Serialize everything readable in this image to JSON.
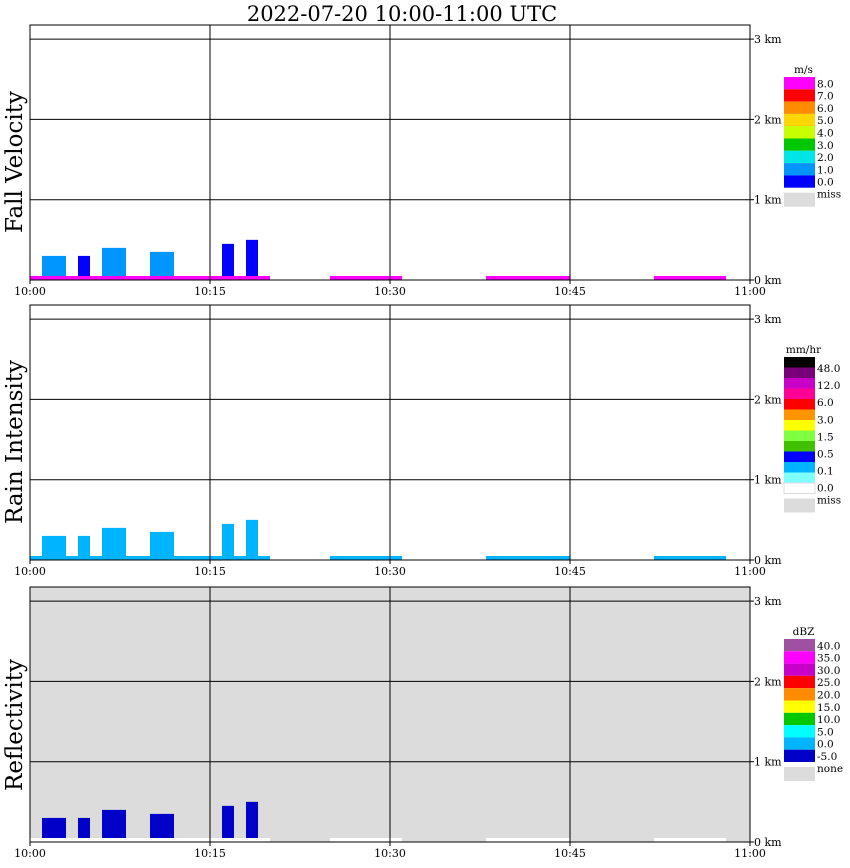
{
  "title": "2022-07-20  10:00-11:00 UTC",
  "x_ticks": [
    "10:00",
    "10:15",
    "10:30",
    "10:45",
    "11:00"
  ],
  "height_ticks": [
    "0 km",
    "1 km",
    "2 km",
    "3 km"
  ],
  "colors": {
    "axis": "#000000",
    "missing": "#dcdcdc",
    "fv": [
      "#0000ff",
      "#0096ff",
      "#00e6e6",
      "#00c800",
      "#c8ff00",
      "#ffd700",
      "#ff8c00",
      "#ff0000",
      "#ff00ff"
    ],
    "ri": [
      "#ffffff",
      "#80ffff",
      "#00b4ff",
      "#0000ff",
      "#40c000",
      "#80ff40",
      "#ffff00",
      "#ff9600",
      "#ff0000",
      "#ff0096",
      "#c800c8",
      "#780078",
      "#000000"
    ],
    "refl": [
      "#0000c8",
      "#00b4ff",
      "#00ffff",
      "#00c800",
      "#ffff00",
      "#ff8c00",
      "#ff0000",
      "#c800c8",
      "#ff00ff",
      "#a050a0"
    ]
  },
  "chart_data": [
    {
      "type": "heatmap",
      "name": "fall_velocity",
      "ylabel": "Fall Velocity",
      "unit": "m/s",
      "x_range": [
        "10:00",
        "11:00"
      ],
      "y_range_km": [
        0,
        3.2
      ],
      "colorbar_labels": [
        "0.0",
        "1.0",
        "2.0",
        "3.0",
        "4.0",
        "5.0",
        "6.0",
        "7.0",
        "8.0"
      ],
      "missing_label": "miss",
      "echo_cells": [
        {
          "t_start": "10:01",
          "t_end": "10:03",
          "top_km": 0.3,
          "value": 1.5
        },
        {
          "t_start": "10:04",
          "t_end": "10:05",
          "top_km": 0.3,
          "value": 0.5
        },
        {
          "t_start": "10:06",
          "t_end": "10:08",
          "top_km": 0.4,
          "value": 1.5
        },
        {
          "t_start": "10:10",
          "t_end": "10:12",
          "top_km": 0.35,
          "value": 1.0
        },
        {
          "t_start": "10:16",
          "t_end": "10:17",
          "top_km": 0.45,
          "value": 0.5
        },
        {
          "t_start": "10:18",
          "t_end": "10:19",
          "top_km": 0.5,
          "value": 0.8
        }
      ],
      "surface_traces": [
        {
          "t_start": "10:00",
          "t_end": "10:20",
          "value": 8.0
        },
        {
          "t_start": "10:25",
          "t_end": "10:31",
          "value": 8.0
        },
        {
          "t_start": "10:38",
          "t_end": "10:45",
          "value": 8.0
        },
        {
          "t_start": "10:52",
          "t_end": "10:58",
          "value": 8.0
        }
      ]
    },
    {
      "type": "heatmap",
      "name": "rain_intensity",
      "ylabel": "Rain Intensity",
      "unit": "mm/hr",
      "x_range": [
        "10:00",
        "11:00"
      ],
      "y_range_km": [
        0,
        3.2
      ],
      "colorbar_labels": [
        "0.0",
        "0.1",
        "0.5",
        "1.5",
        "3.0",
        "6.0",
        "12.0",
        "48.0"
      ],
      "missing_label": "miss",
      "echo_cells": [
        {
          "t_start": "10:01",
          "t_end": "10:03",
          "top_km": 0.3,
          "value": 0.1
        },
        {
          "t_start": "10:04",
          "t_end": "10:05",
          "top_km": 0.3,
          "value": 0.1
        },
        {
          "t_start": "10:06",
          "t_end": "10:08",
          "top_km": 0.4,
          "value": 0.1
        },
        {
          "t_start": "10:10",
          "t_end": "10:12",
          "top_km": 0.35,
          "value": 0.1
        },
        {
          "t_start": "10:16",
          "t_end": "10:17",
          "top_km": 0.45,
          "value": 0.1
        },
        {
          "t_start": "10:18",
          "t_end": "10:19",
          "top_km": 0.5,
          "value": 0.1
        }
      ],
      "surface_traces": [
        {
          "t_start": "10:00",
          "t_end": "10:20",
          "value": 0.1
        },
        {
          "t_start": "10:25",
          "t_end": "10:31",
          "value": 0.1
        },
        {
          "t_start": "10:38",
          "t_end": "10:45",
          "value": 0.1
        },
        {
          "t_start": "10:52",
          "t_end": "10:58",
          "value": 0.1
        }
      ]
    },
    {
      "type": "heatmap",
      "name": "reflectivity",
      "ylabel": "Reflectivity",
      "unit": "dBZ",
      "x_range": [
        "10:00",
        "11:00"
      ],
      "y_range_km": [
        0,
        3.2
      ],
      "colorbar_labels": [
        "-5.0",
        "0.0",
        "5.0",
        "10.0",
        "15.0",
        "20.0",
        "25.0",
        "30.0",
        "35.0",
        "40.0"
      ],
      "missing_label": "none",
      "echo_cells": [
        {
          "t_start": "10:01",
          "t_end": "10:03",
          "top_km": 0.3,
          "value": -5.0
        },
        {
          "t_start": "10:04",
          "t_end": "10:05",
          "top_km": 0.3,
          "value": -5.0
        },
        {
          "t_start": "10:06",
          "t_end": "10:08",
          "top_km": 0.4,
          "value": -5.0
        },
        {
          "t_start": "10:10",
          "t_end": "10:12",
          "top_km": 0.35,
          "value": -5.0
        },
        {
          "t_start": "10:16",
          "t_end": "10:17",
          "top_km": 0.45,
          "value": -5.0
        },
        {
          "t_start": "10:18",
          "t_end": "10:19",
          "top_km": 0.5,
          "value": -5.0
        }
      ],
      "surface_traces": [
        {
          "t_start": "10:00",
          "t_end": "10:20",
          "value": -5.0
        },
        {
          "t_start": "10:25",
          "t_end": "10:31",
          "value": -5.0
        },
        {
          "t_start": "10:38",
          "t_end": "10:45",
          "value": -5.0
        },
        {
          "t_start": "10:52",
          "t_end": "10:58",
          "value": -5.0
        }
      ]
    }
  ]
}
